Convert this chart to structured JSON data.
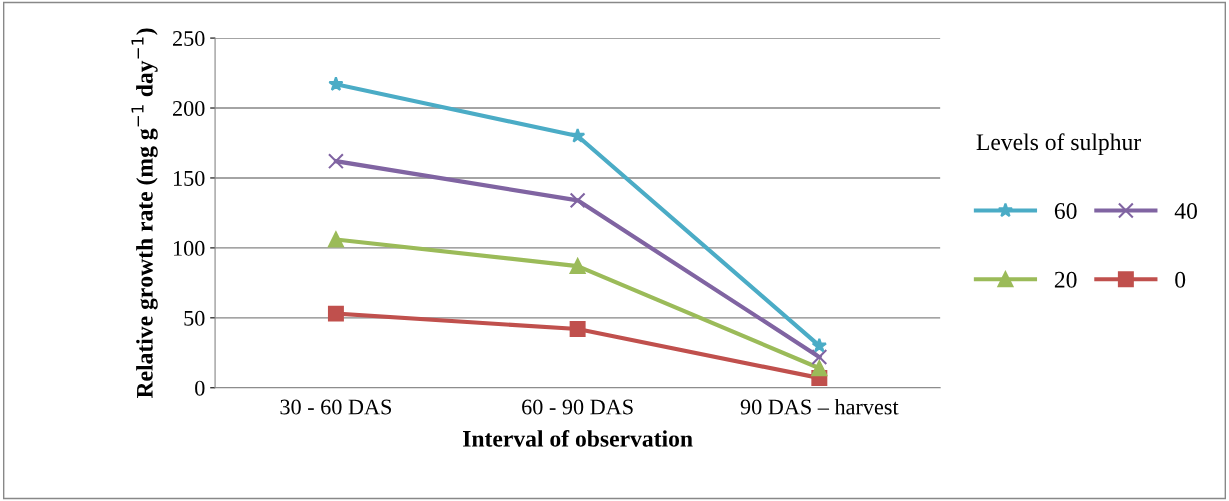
{
  "chart_data": {
    "type": "line",
    "xlabel": "Interval of observation",
    "ylabel": "Relative growth rate (mg g$^{−1}$ day$^{−1}$)",
    "categories": [
      "30 - 60 DAS",
      "60 - 90 DAS",
      "90 DAS – harvest"
    ],
    "legend_title": "Levels of sulphur",
    "legend": "right",
    "series": [
      {
        "name": "60",
        "color": "#4bacc6",
        "marker": "star",
        "values": [
          217,
          180,
          30
        ]
      },
      {
        "name": "40",
        "color": "#8064a2",
        "marker": "cross",
        "values": [
          162,
          134,
          22
        ]
      },
      {
        "name": "20",
        "color": "#9bbb59",
        "marker": "triangle",
        "values": [
          106,
          87,
          14
        ]
      },
      {
        "name": "0",
        "color": "#c0504d",
        "marker": "square",
        "values": [
          53,
          42,
          7
        ]
      }
    ],
    "ylim": [
      0,
      250
    ],
    "yticks": [
      0,
      50,
      100,
      150,
      200,
      250
    ],
    "grid": "y",
    "line_style": "solid"
  }
}
